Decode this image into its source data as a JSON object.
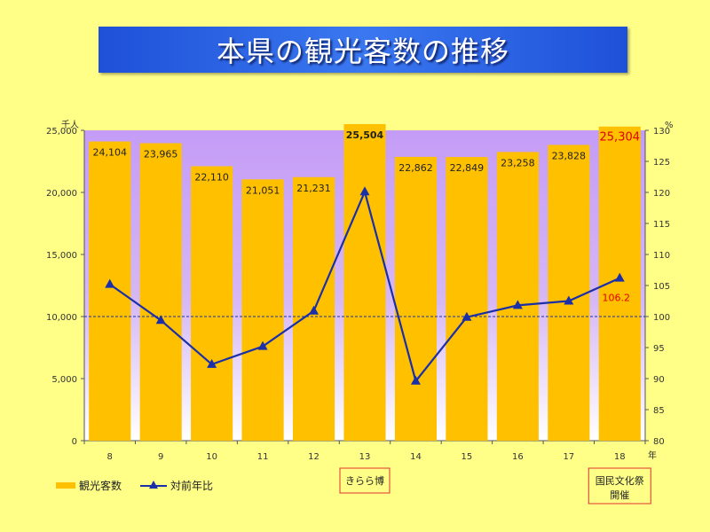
{
  "title": "本県の観光客数の推移",
  "chart_data": {
    "type": "bar+line",
    "categories": [
      "8",
      "9",
      "10",
      "11",
      "12",
      "13",
      "14",
      "15",
      "16",
      "17",
      "18"
    ],
    "x_unit": "年",
    "series": [
      {
        "name": "観光客数",
        "type": "bar",
        "axis": "left",
        "color": "#ffc000",
        "values": [
          24104,
          23965,
          22110,
          21051,
          21231,
          25504,
          22862,
          22849,
          23258,
          23828,
          25304
        ],
        "labels": [
          "24,104",
          "23,965",
          "22,110",
          "21,051",
          "21,231",
          "25,504",
          "22,862",
          "22,849",
          "23,258",
          "23,828",
          "25,304"
        ]
      },
      {
        "name": "対前年比",
        "type": "line",
        "axis": "right",
        "color": "#1a2fa8",
        "marker": "triangle",
        "values": [
          105.2,
          99.4,
          92.3,
          95.2,
          100.9,
          120.1,
          89.6,
          99.9,
          101.8,
          102.5,
          106.2
        ],
        "annotated_value_label": "106.2"
      }
    ],
    "y_left": {
      "unit": "千人",
      "ylim": [
        0,
        25000
      ],
      "ticks": [
        "0",
        "5,000",
        "10,000",
        "15,000",
        "20,000",
        "25,000"
      ]
    },
    "y_right": {
      "unit": "%",
      "ylim": [
        80,
        130
      ],
      "ticks": [
        "80",
        "85",
        "90",
        "95",
        "100",
        "105",
        "110",
        "115",
        "120",
        "125",
        "130"
      ]
    },
    "reference_line": 100,
    "plot_background": "#c5a6f7",
    "highlight_colors": {
      "peak_label": "#e00000"
    },
    "legend_position": "bottom-left",
    "annotations": [
      {
        "category": "13",
        "text": "きらら博"
      },
      {
        "category": "18",
        "text": "国民文化祭\n開催"
      }
    ]
  }
}
